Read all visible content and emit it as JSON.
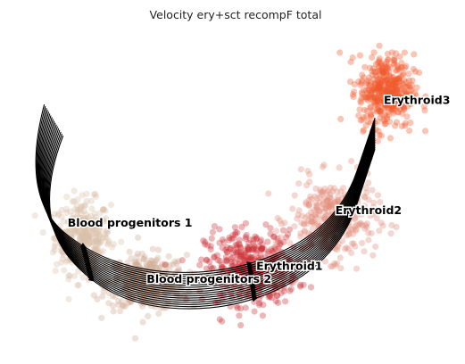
{
  "chart_data": {
    "type": "scatter",
    "subtype": "umap-velocity-stream",
    "title": "Velocity ery+sct recompF total",
    "xlabel": "",
    "ylabel": "",
    "axes_visible": false,
    "grid": false,
    "legend": "on data",
    "series": [
      {
        "name": "Blood progenitors 1",
        "color": "#d9bfa9",
        "label_xy": [
          -6.7,
          4.1
        ],
        "center": [
          -6.1,
          3.7
        ],
        "spread": [
          0.9,
          1.2
        ],
        "count": 360
      },
      {
        "name": "Blood progenitors 2",
        "color": "#cfa893",
        "label_xy": [
          -3.6,
          1.9
        ],
        "center": [
          -3.6,
          1.9
        ],
        "spread": [
          1.3,
          0.9
        ],
        "count": 360
      },
      {
        "name": "Erythroid1",
        "color": "#cc2f35",
        "label_xy": [
          0.7,
          2.4
        ],
        "center": [
          0.5,
          2.5
        ],
        "spread": [
          1.5,
          1.2
        ],
        "count": 420
      },
      {
        "name": "Erythroid2",
        "color": "#e38b7c",
        "label_xy": [
          3.8,
          4.6
        ],
        "center": [
          3.7,
          4.4
        ],
        "spread": [
          1.4,
          1.3
        ],
        "count": 340
      },
      {
        "name": "Erythroid3",
        "color": "#f15a2b",
        "label_xy": [
          5.7,
          8.9
        ],
        "center": [
          5.8,
          9.4
        ],
        "spread": [
          0.9,
          1.2
        ],
        "count": 420
      }
    ],
    "xlim": [
      -9,
      8.5
    ],
    "ylim": [
      -1,
      12
    ]
  }
}
